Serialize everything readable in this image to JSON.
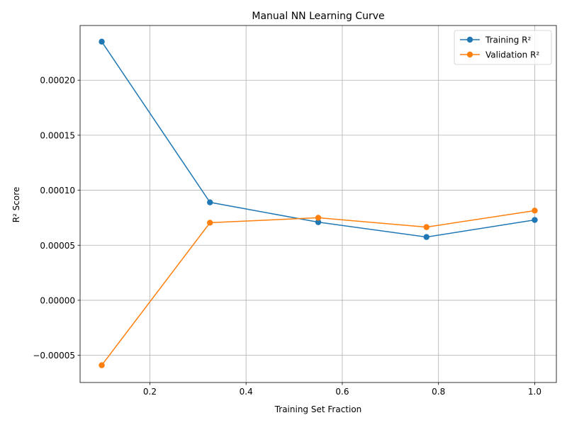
{
  "chart_data": {
    "type": "line",
    "title": "Manual NN Learning Curve",
    "xlabel": "Training Set Fraction",
    "ylabel": "R² Score",
    "x": [
      0.1,
      0.325,
      0.55,
      0.775,
      1.0
    ],
    "series": [
      {
        "name": "Training R²",
        "color": "#1f77b4",
        "values": [
          0.000235,
          8.9e-05,
          7.1e-05,
          5.75e-05,
          7.3e-05
        ]
      },
      {
        "name": "Validation R²",
        "color": "#ff7f0e",
        "values": [
          -5.9e-05,
          7.05e-05,
          7.5e-05,
          6.65e-05,
          8.15e-05
        ]
      }
    ],
    "xlim": [
      0.055,
      1.045
    ],
    "ylim": [
      -7.47e-05,
      0.0002497
    ],
    "xticks": [
      0.2,
      0.4,
      0.6,
      0.8,
      1.0
    ],
    "xtick_labels": [
      "0.2",
      "0.4",
      "0.6",
      "0.8",
      "1.0"
    ],
    "yticks": [
      -5e-05,
      0.0,
      5e-05,
      0.0001,
      0.00015,
      0.0002
    ],
    "ytick_labels": [
      "−0.00005",
      "0.00000",
      "0.00005",
      "0.00010",
      "0.00015",
      "0.00020"
    ],
    "grid": true,
    "legend_position": "top-right",
    "marker": "circle"
  }
}
